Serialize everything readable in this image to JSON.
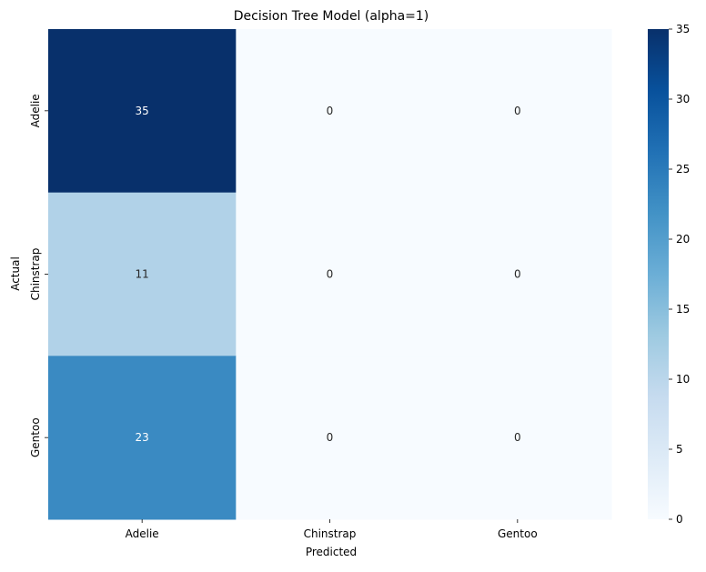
{
  "chart_data": {
    "type": "heatmap",
    "title": "Decision Tree Model (alpha=1)",
    "xlabel": "Predicted",
    "ylabel": "Actual",
    "x_categories": [
      "Adelie",
      "Chinstrap",
      "Gentoo"
    ],
    "y_categories": [
      "Adelie",
      "Chinstrap",
      "Gentoo"
    ],
    "values": [
      [
        35,
        0,
        0
      ],
      [
        11,
        0,
        0
      ],
      [
        23,
        0,
        0
      ]
    ],
    "colormap": "Blues",
    "vmin": 0,
    "vmax": 35,
    "colorbar_ticks": [
      0,
      5,
      10,
      15,
      20,
      25,
      30,
      35
    ],
    "annotations": true
  }
}
